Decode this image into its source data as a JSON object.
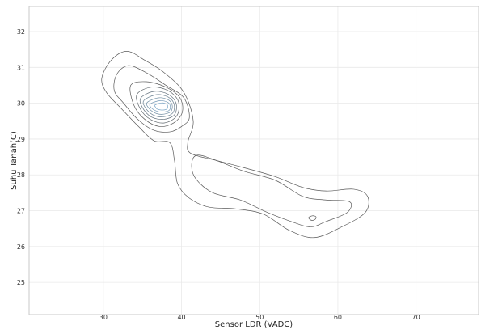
{
  "chart_data": {
    "type": "contour",
    "title": "",
    "xlabel": "Sensor LDR (VADC)",
    "ylabel": "Suhu Tanah(C)",
    "xlim": [
      20.5,
      78
    ],
    "ylim": [
      24.1,
      32.7
    ],
    "x_ticks": [
      30,
      40,
      50,
      60,
      70
    ],
    "y_ticks": [
      25,
      26,
      27,
      28,
      29,
      30,
      31,
      32
    ],
    "grid": true,
    "legend": "none",
    "colors": {
      "outer": "#5a5a5a",
      "inner": "#7aa6c8"
    },
    "levels": [
      {
        "name": "level-1",
        "points": [
          [
            29.8,
            30.7
          ],
          [
            31,
            31.2
          ],
          [
            33,
            31.45
          ],
          [
            35.3,
            31.2
          ],
          [
            37.8,
            30.85
          ],
          [
            40.3,
            30.3
          ],
          [
            41.5,
            29.5
          ],
          [
            40.8,
            28.9
          ],
          [
            41.2,
            28.6
          ],
          [
            44.5,
            28.4
          ],
          [
            48,
            28.2
          ],
          [
            52,
            27.95
          ],
          [
            55.5,
            27.65
          ],
          [
            58.5,
            27.55
          ],
          [
            62,
            27.6
          ],
          [
            63.8,
            27.4
          ],
          [
            63.5,
            26.95
          ],
          [
            60.5,
            26.55
          ],
          [
            57,
            26.25
          ],
          [
            53.8,
            26.45
          ],
          [
            50.5,
            26.9
          ],
          [
            47,
            27.05
          ],
          [
            43.5,
            27.1
          ],
          [
            41,
            27.35
          ],
          [
            39.5,
            27.75
          ],
          [
            39.1,
            28.4
          ],
          [
            38.5,
            28.9
          ],
          [
            36.5,
            28.95
          ],
          [
            34.5,
            29.35
          ],
          [
            32.3,
            29.85
          ],
          [
            30.4,
            30.3
          ]
        ]
      },
      {
        "name": "level-2",
        "points": [
          [
            31.7,
            30.8
          ],
          [
            33.2,
            31.05
          ],
          [
            35.5,
            30.85
          ],
          [
            38,
            30.5
          ],
          [
            40.3,
            30.15
          ],
          [
            41,
            29.6
          ],
          [
            40,
            29.35
          ],
          [
            38.5,
            29.2
          ],
          [
            36.4,
            29.25
          ],
          [
            34.4,
            29.55
          ],
          [
            32.6,
            30
          ],
          [
            31.4,
            30.35
          ]
        ]
      },
      {
        "name": "level-3",
        "points": [
          [
            42,
            28.55
          ],
          [
            44.5,
            28.4
          ],
          [
            48,
            28.1
          ],
          [
            52,
            27.85
          ],
          [
            55.5,
            27.4
          ],
          [
            58.5,
            27.3
          ],
          [
            61.5,
            27.25
          ],
          [
            61.2,
            26.95
          ],
          [
            58.5,
            26.7
          ],
          [
            56.5,
            26.55
          ],
          [
            54,
            26.7
          ],
          [
            51,
            26.95
          ],
          [
            47.5,
            27.3
          ],
          [
            44,
            27.5
          ],
          [
            41.8,
            27.9
          ],
          [
            41.3,
            28.3
          ]
        ]
      },
      {
        "name": "level-4",
        "points": [
          [
            33.5,
            30.5
          ],
          [
            35.5,
            30.6
          ],
          [
            38,
            30.45
          ],
          [
            39.8,
            30.15
          ],
          [
            40.1,
            29.75
          ],
          [
            39,
            29.45
          ],
          [
            37.2,
            29.35
          ],
          [
            35.3,
            29.55
          ],
          [
            33.9,
            29.95
          ]
        ]
      },
      {
        "name": "level-5",
        "points": [
          [
            34.3,
            30.25
          ],
          [
            36.2,
            30.45
          ],
          [
            38.3,
            30.35
          ],
          [
            39.6,
            30.05
          ],
          [
            39.4,
            29.65
          ],
          [
            37.8,
            29.45
          ],
          [
            36,
            29.55
          ],
          [
            34.7,
            29.85
          ]
        ]
      },
      {
        "name": "level-6",
        "points": [
          [
            34.8,
            30.15
          ],
          [
            36.5,
            30.33
          ],
          [
            38.3,
            30.25
          ],
          [
            39.3,
            30
          ],
          [
            39.1,
            29.68
          ],
          [
            37.7,
            29.55
          ],
          [
            36.1,
            29.62
          ],
          [
            35,
            29.88
          ]
        ]
      },
      {
        "name": "level-7",
        "points": [
          [
            35.2,
            30.08
          ],
          [
            36.8,
            30.24
          ],
          [
            38.3,
            30.17
          ],
          [
            39.05,
            29.97
          ],
          [
            38.85,
            29.72
          ],
          [
            37.6,
            29.62
          ],
          [
            36.3,
            29.68
          ],
          [
            35.35,
            29.88
          ]
        ]
      },
      {
        "name": "level-8",
        "points": [
          [
            35.6,
            30.02
          ],
          [
            37,
            30.15
          ],
          [
            38.25,
            30.1
          ],
          [
            38.8,
            29.95
          ],
          [
            38.6,
            29.76
          ],
          [
            37.5,
            29.69
          ],
          [
            36.5,
            29.74
          ],
          [
            35.75,
            29.88
          ]
        ]
      },
      {
        "name": "level-9",
        "points": [
          [
            36,
            29.98
          ],
          [
            37.2,
            30.07
          ],
          [
            38.2,
            30.03
          ],
          [
            38.55,
            29.93
          ],
          [
            38.4,
            29.8
          ],
          [
            37.45,
            29.75
          ],
          [
            36.7,
            29.79
          ],
          [
            36.1,
            29.88
          ]
        ]
      },
      {
        "name": "level-10",
        "points": [
          [
            36.6,
            29.95
          ],
          [
            37.45,
            30.01
          ],
          [
            38.1,
            29.97
          ],
          [
            38.25,
            29.9
          ],
          [
            38.05,
            29.83
          ],
          [
            37.4,
            29.81
          ],
          [
            36.85,
            29.84
          ],
          [
            36.65,
            29.9
          ]
        ]
      },
      {
        "name": "level-11",
        "points": [
          [
            56.3,
            26.82
          ],
          [
            56.8,
            26.86
          ],
          [
            57.2,
            26.83
          ],
          [
            57.1,
            26.76
          ],
          [
            56.7,
            26.73
          ],
          [
            56.35,
            26.77
          ]
        ]
      }
    ]
  }
}
